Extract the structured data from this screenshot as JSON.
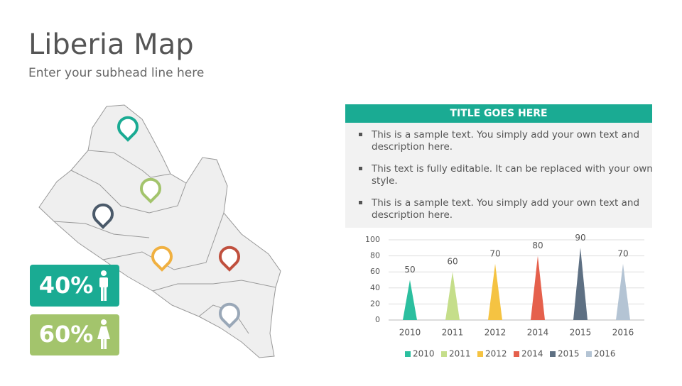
{
  "header": {
    "title": "Liberia Map",
    "subtitle": "Enter your subhead line here"
  },
  "panel": {
    "title": "TITLE GOES HERE",
    "bullets": [
      [
        "This is a sample text. You simply add your own text and",
        "description here."
      ],
      [
        "This text is fully editable. It can be replaced with your own",
        "style."
      ],
      [
        "This is a sample text. You simply add your own text and",
        "description here."
      ]
    ]
  },
  "stats": [
    {
      "label": "40%"
    },
    {
      "label": "60%"
    }
  ],
  "chart_data": {
    "type": "bar",
    "categories": [
      "2010",
      "2011",
      "2012",
      "2014",
      "2015",
      "2016"
    ],
    "values": [
      50,
      60,
      70,
      80,
      90,
      70
    ],
    "colors": [
      "#2bbf9f",
      "#c5de8a",
      "#f5c342",
      "#e5604c",
      "#5e7083",
      "#b4c4d4"
    ],
    "ylim": [
      0,
      100
    ],
    "yticks": [
      0,
      20,
      40,
      60,
      80,
      100
    ],
    "grid": true,
    "legend": "bottom"
  }
}
